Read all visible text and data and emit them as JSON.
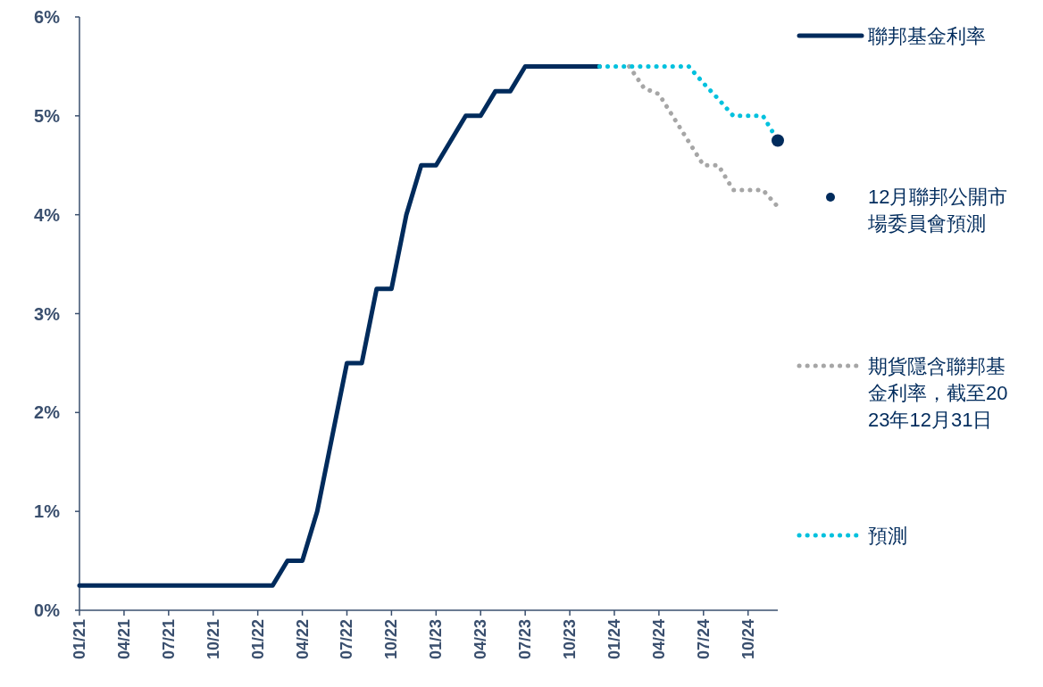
{
  "chart_data": {
    "type": "line",
    "x": [
      "2021-01",
      "2021-02",
      "2021-03",
      "2021-04",
      "2021-05",
      "2021-06",
      "2021-07",
      "2021-08",
      "2021-09",
      "2021-10",
      "2021-11",
      "2021-12",
      "2022-01",
      "2022-02",
      "2022-03",
      "2022-04",
      "2022-05",
      "2022-06",
      "2022-07",
      "2022-08",
      "2022-09",
      "2022-10",
      "2022-11",
      "2022-12",
      "2023-01",
      "2023-02",
      "2023-03",
      "2023-04",
      "2023-05",
      "2023-06",
      "2023-07",
      "2023-08",
      "2023-09",
      "2023-10",
      "2023-11",
      "2023-12"
    ],
    "series": [
      {
        "name": "聯邦基金利率",
        "color": "#002b5c",
        "line_style": "solid",
        "values": [
          0.25,
          0.25,
          0.25,
          0.25,
          0.25,
          0.25,
          0.25,
          0.25,
          0.25,
          0.25,
          0.25,
          0.25,
          0.25,
          0.25,
          0.5,
          0.5,
          1.0,
          1.75,
          2.5,
          2.5,
          3.25,
          3.25,
          4.0,
          4.5,
          4.5,
          4.75,
          5.0,
          5.0,
          5.25,
          5.25,
          5.5,
          5.5,
          5.5,
          5.5,
          5.5,
          5.5
        ]
      },
      {
        "name": "12月聯邦公開市場委員會預測",
        "type": "scatter",
        "color": "#002b5c",
        "x": [
          "2024-12"
        ],
        "values": [
          4.75
        ]
      },
      {
        "name": "期貨隱含聯邦基金利率，截至2023年12月31日",
        "color": "#a6a6a6",
        "line_style": "dotted",
        "x": [
          "2024-02",
          "2024-03",
          "2024-04",
          "2024-05",
          "2024-06",
          "2024-07",
          "2024-08",
          "2024-09",
          "2024-10",
          "2024-11",
          "2024-12"
        ],
        "values": [
          5.5,
          5.28,
          5.22,
          4.98,
          4.74,
          4.5,
          4.5,
          4.25,
          4.25,
          4.25,
          4.08
        ]
      },
      {
        "name": "預測",
        "color": "#00c1de",
        "line_style": "dotted",
        "x": [
          "2023-12",
          "2024-01",
          "2024-02",
          "2024-03",
          "2024-04",
          "2024-05",
          "2024-06",
          "2024-07",
          "2024-08",
          "2024-09",
          "2024-10",
          "2024-11",
          "2024-12"
        ],
        "values": [
          5.5,
          5.5,
          5.5,
          5.5,
          5.5,
          5.5,
          5.5,
          5.33,
          5.17,
          5.0,
          5.0,
          5.0,
          4.75
        ]
      }
    ],
    "xlim": [
      "2021-01",
      "2024-12"
    ],
    "xticks": [
      {
        "value": "2021-01",
        "label": "01/21"
      },
      {
        "value": "2021-04",
        "label": "04/21"
      },
      {
        "value": "2021-07",
        "label": "07/21"
      },
      {
        "value": "2021-10",
        "label": "10/21"
      },
      {
        "value": "2022-01",
        "label": "01/22"
      },
      {
        "value": "2022-04",
        "label": "04/22"
      },
      {
        "value": "2022-07",
        "label": "07/22"
      },
      {
        "value": "2022-10",
        "label": "10/22"
      },
      {
        "value": "2023-01",
        "label": "01/23"
      },
      {
        "value": "2023-04",
        "label": "04/23"
      },
      {
        "value": "2023-07",
        "label": "07/23"
      },
      {
        "value": "2023-10",
        "label": "10/23"
      },
      {
        "value": "2024-01",
        "label": "01/24"
      },
      {
        "value": "2024-04",
        "label": "04/24"
      },
      {
        "value": "2024-07",
        "label": "07/24"
      },
      {
        "value": "2024-10",
        "label": "10/24"
      }
    ],
    "ylim": [
      0,
      6
    ],
    "yticks": [
      {
        "value": 0,
        "label": "0%"
      },
      {
        "value": 1,
        "label": "1%"
      },
      {
        "value": 2,
        "label": "2%"
      },
      {
        "value": 3,
        "label": "3%"
      },
      {
        "value": 4,
        "label": "4%"
      },
      {
        "value": 5,
        "label": "5%"
      },
      {
        "value": 6,
        "label": "6%"
      }
    ],
    "legend": "right"
  }
}
